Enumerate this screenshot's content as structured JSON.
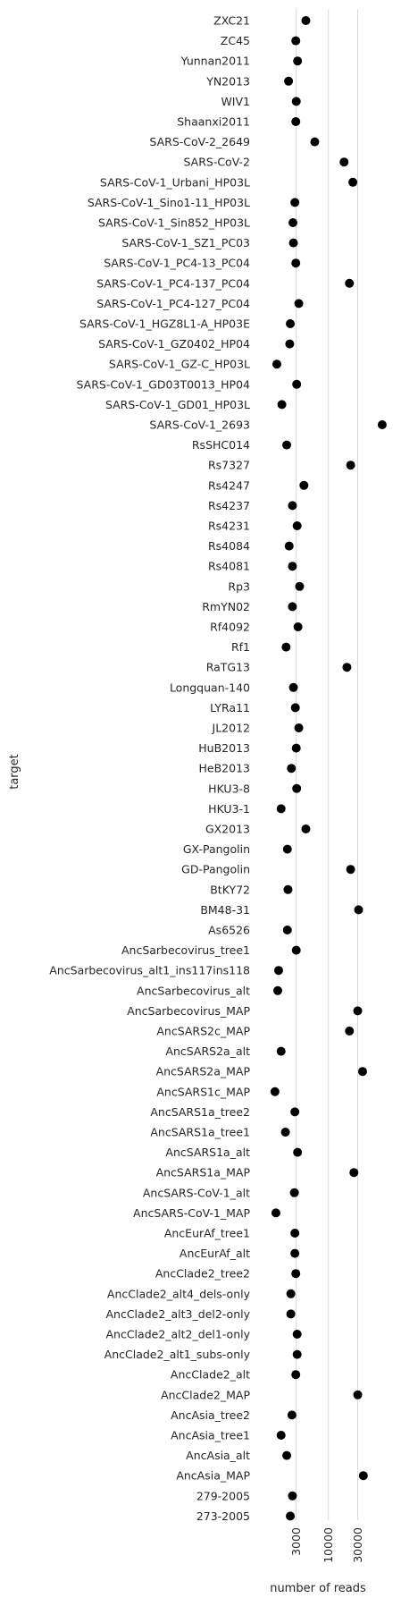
{
  "chart_data": {
    "type": "scatter",
    "xlabel": "number of reads",
    "ylabel": "target",
    "x_scale": "log",
    "xlim": [
      650,
      95000
    ],
    "x_ticks": [
      {
        "value": 3000,
        "label": "3000"
      },
      {
        "value": 10000,
        "label": "10000"
      },
      {
        "value": 30000,
        "label": "30000"
      }
    ],
    "grid": "vertical",
    "marker_color": "#000000",
    "categories": [
      "ZXC21",
      "ZC45",
      "Yunnan2011",
      "YN2013",
      "WIV1",
      "Shaanxi2011",
      "SARS-CoV-2_2649",
      "SARS-CoV-2",
      "SARS-CoV-1_Urbani_HP03L",
      "SARS-CoV-1_Sino1-11_HP03L",
      "SARS-CoV-1_Sin852_HP03L",
      "SARS-CoV-1_SZ1_PC03",
      "SARS-CoV-1_PC4-13_PC04",
      "SARS-CoV-1_PC4-137_PC04",
      "SARS-CoV-1_PC4-127_PC04",
      "SARS-CoV-1_HGZ8L1-A_HP03E",
      "SARS-CoV-1_GZ0402_HP04",
      "SARS-CoV-1_GZ-C_HP03L",
      "SARS-CoV-1_GD03T0013_HP04",
      "SARS-CoV-1_GD01_HP03L",
      "SARS-CoV-1_2693",
      "RsSHC014",
      "Rs7327",
      "Rs4247",
      "Rs4237",
      "Rs4231",
      "Rs4084",
      "Rs4081",
      "Rp3",
      "RmYN02",
      "Rf4092",
      "Rf1",
      "RaTG13",
      "Longquan-140",
      "LYRa11",
      "JL2012",
      "HuB2013",
      "HeB2013",
      "HKU3-8",
      "HKU3-1",
      "GX2013",
      "GX-Pangolin",
      "GD-Pangolin",
      "BtKY72",
      "BM48-31",
      "As6526",
      "AncSarbecovirus_tree1",
      "AncSarbecovirus_alt1_ins117ins118",
      "AncSarbecovirus_alt",
      "AncSarbecovirus_MAP",
      "AncSARS2c_MAP",
      "AncSARS2a_alt",
      "AncSARS2a_MAP",
      "AncSARS1c_MAP",
      "AncSARS1a_tree2",
      "AncSARS1a_tree1",
      "AncSARS1a_alt",
      "AncSARS1a_MAP",
      "AncSARS-CoV-1_alt",
      "AncSARS-CoV-1_MAP",
      "AncEurAf_tree1",
      "AncEurAf_alt",
      "AncClade2_tree2",
      "AncClade2_alt4_dels-only",
      "AncClade2_alt3_del2-only",
      "AncClade2_alt2_del1-only",
      "AncClade2_alt1_subs-only",
      "AncClade2_alt",
      "AncClade2_MAP",
      "AncAsia_tree2",
      "AncAsia_tree1",
      "AncAsia_alt",
      "AncAsia_MAP",
      "279-2005",
      "273-2005"
    ],
    "values": [
      4300,
      2950,
      3150,
      2250,
      3000,
      2950,
      6000,
      18000,
      25000,
      2850,
      2650,
      2700,
      2950,
      22000,
      3300,
      2400,
      2350,
      1450,
      3050,
      1750,
      75000,
      2100,
      23000,
      4000,
      2600,
      3100,
      2300,
      2600,
      3400,
      2600,
      3200,
      2050,
      20000,
      2700,
      2900,
      3300,
      3000,
      2500,
      3050,
      1700,
      4300,
      2150,
      23000,
      2200,
      31000,
      2150,
      3000,
      1550,
      1500,
      30000,
      22000,
      1700,
      36000,
      1350,
      2850,
      2000,
      3150,
      26000,
      2800,
      1400,
      2850,
      2850,
      2950,
      2450,
      2450,
      3100,
      3100,
      2950,
      30000,
      2550,
      1700,
      2100,
      37000,
      2600,
      2400
    ]
  }
}
